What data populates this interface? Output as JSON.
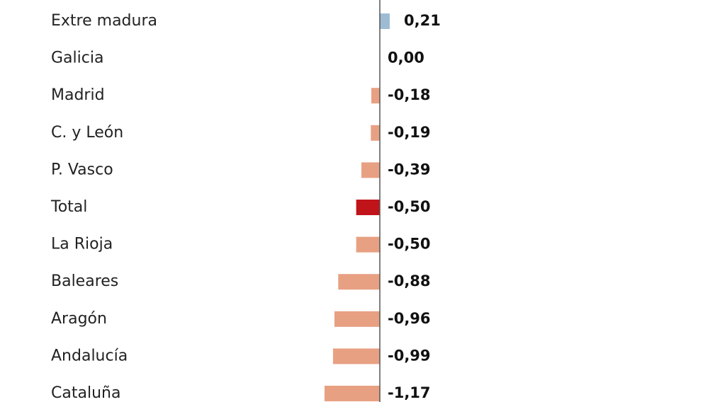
{
  "chart_data": {
    "type": "hbar",
    "categories": [
      "Extre madura",
      "Galicia",
      "Madrid",
      "C. y León",
      "P. Vasco",
      "Total",
      "La Rioja",
      "Baleares",
      "Aragón",
      "Andalucía",
      "Cataluña"
    ],
    "values": [
      0.21,
      0.0,
      -0.18,
      -0.19,
      -0.39,
      -0.5,
      -0.5,
      -0.88,
      -0.96,
      -0.99,
      -1.17
    ],
    "value_labels": [
      "0,21",
      "0,00",
      "-0,18",
      "-0,19",
      "-0,39",
      "-0,50",
      "-0,50",
      "-0,88",
      "-0,96",
      "-0,99",
      "-1,17"
    ],
    "colors": [
      "#9dbcd4",
      "#e8a083",
      "#e8a083",
      "#e8a083",
      "#e8a083",
      "#c0141a",
      "#e8a083",
      "#e8a083",
      "#e8a083",
      "#e8a083",
      "#e8a083"
    ]
  }
}
